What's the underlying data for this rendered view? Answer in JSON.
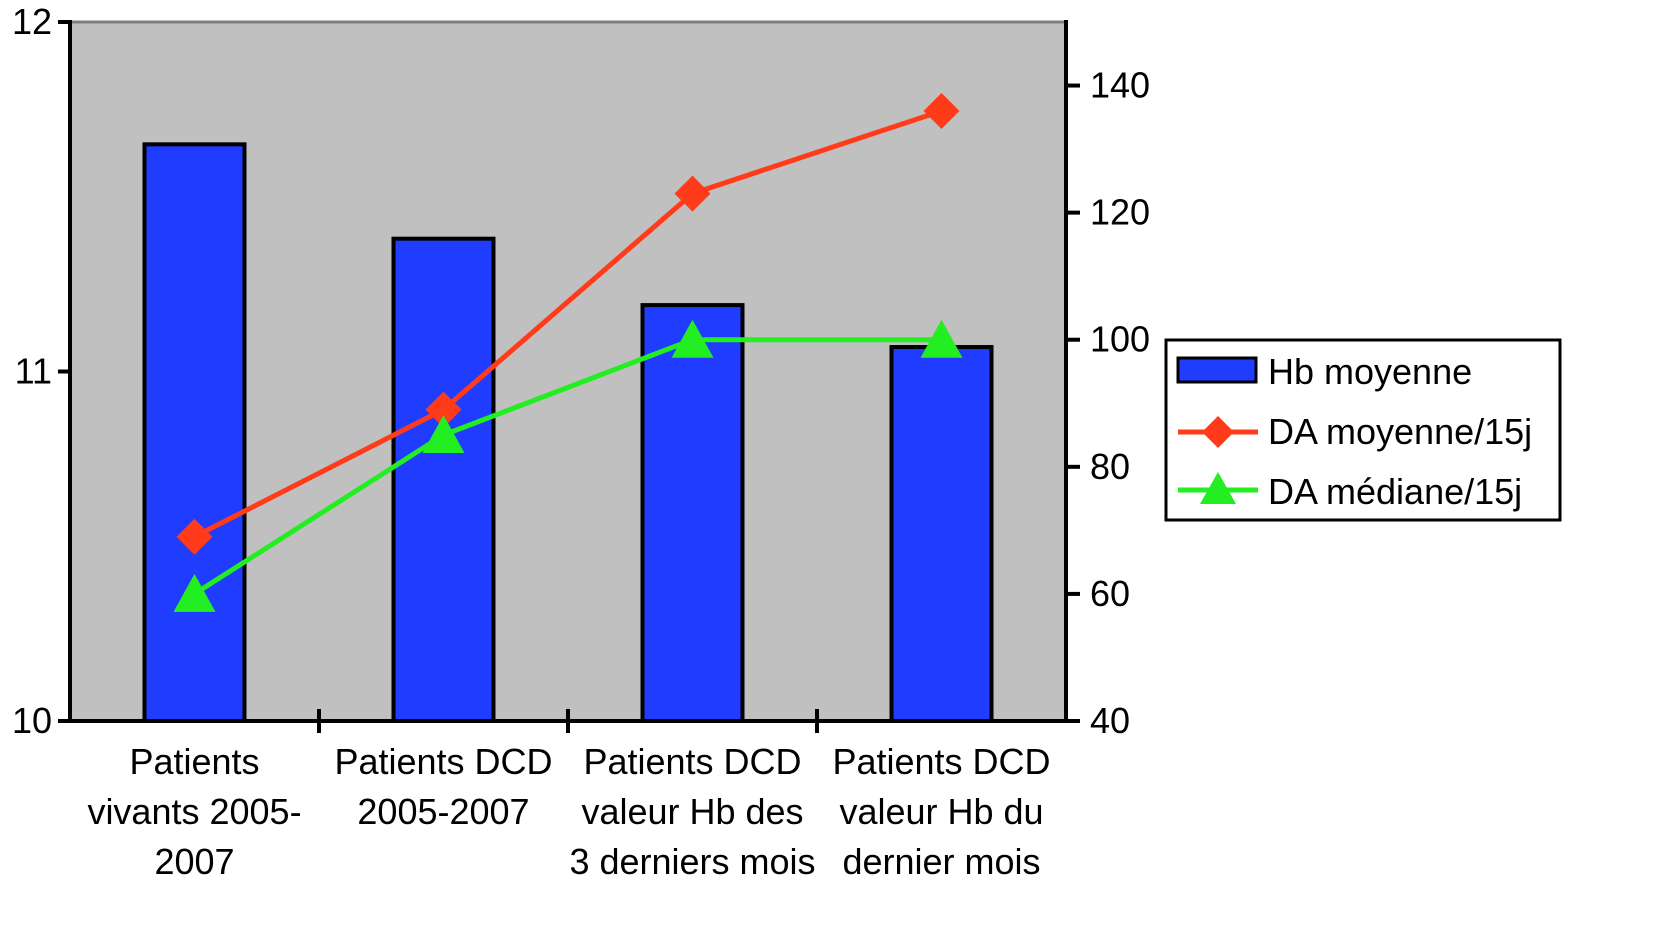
{
  "chart_data": {
    "type": "bar",
    "categories": [
      [
        "Patients",
        "vivants 2005-",
        "2007"
      ],
      [
        "Patients   DCD",
        "2005-2007"
      ],
      [
        "Patients DCD",
        "valeur Hb des",
        "3 derniers mois"
      ],
      [
        "Patients DCD",
        "valeur Hb du",
        "dernier mois"
      ]
    ],
    "series": [
      {
        "name": "Hb moyenne",
        "type": "bar",
        "axis": "left",
        "values": [
          11.65,
          11.38,
          11.19,
          11.07
        ],
        "color": "#1f3cff"
      },
      {
        "name": "DA moyenne/15j",
        "type": "line",
        "axis": "right",
        "marker": "diamond",
        "values": [
          69,
          89,
          123,
          136
        ],
        "color": "#ff3b1a"
      },
      {
        "name": "DA médiane/15j",
        "type": "line",
        "axis": "right",
        "marker": "triangle",
        "values": [
          60,
          85,
          100,
          100
        ],
        "color": "#22ee22"
      }
    ],
    "y_left": {
      "min": 10,
      "max": 12,
      "ticks": [
        "10",
        "11",
        "12"
      ]
    },
    "y_right": {
      "min": 40,
      "max": 150,
      "ticks": [
        "40",
        "60",
        "80",
        "100",
        "120",
        "140"
      ]
    },
    "plot_background": "#c0c0c0",
    "grid": false,
    "legend_position": "right",
    "title": "",
    "xlabel": "",
    "ylabel": ""
  }
}
